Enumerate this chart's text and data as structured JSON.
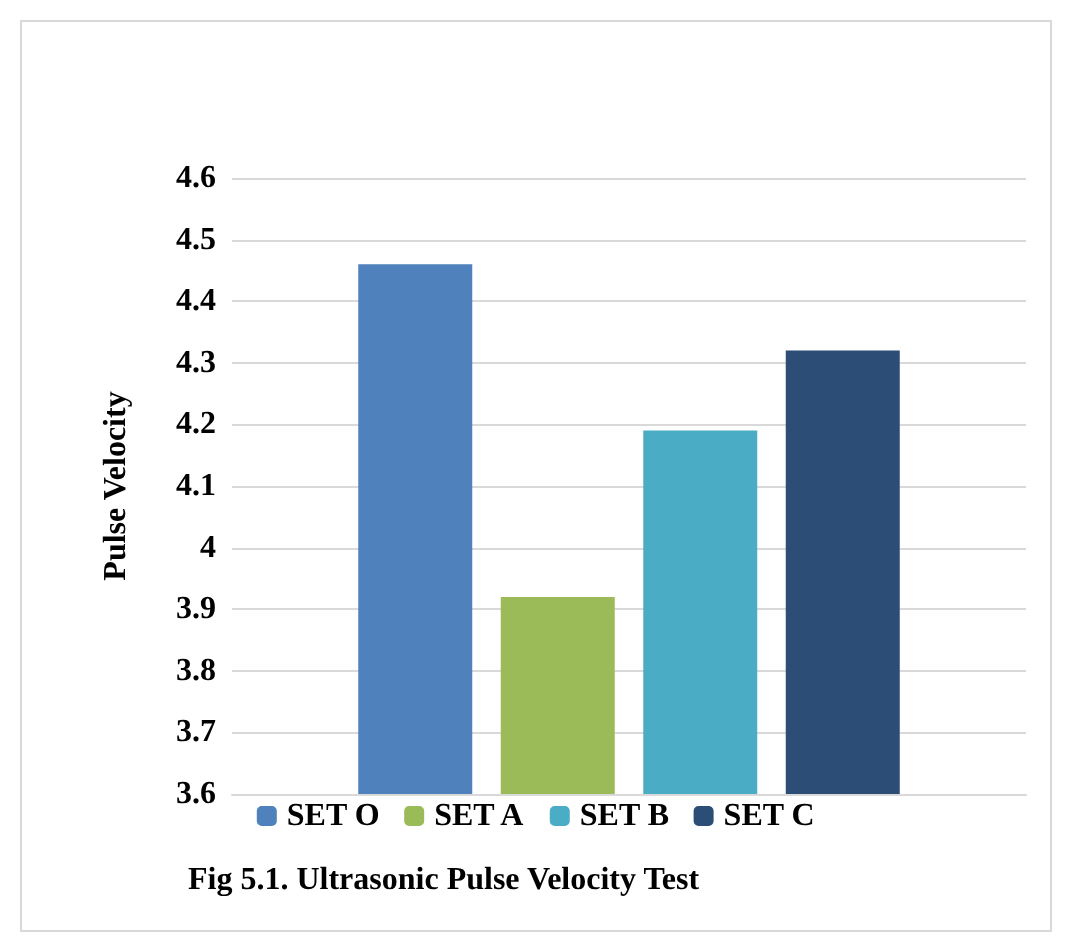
{
  "chart_data": {
    "type": "bar",
    "title": "Fig 5.1. Ultrasonic Pulse Velocity Test",
    "ylabel": "Pulse Velocity",
    "categories": [
      null
    ],
    "series": [
      {
        "name": "SET O",
        "color": "#4f81bd",
        "values": [
          4.46
        ]
      },
      {
        "name": "SET A",
        "color": "#9bbb59",
        "values": [
          3.92
        ]
      },
      {
        "name": "SET B",
        "color": "#4bacc6",
        "values": [
          4.19
        ]
      },
      {
        "name": "SET C",
        "color": "#2c4d75",
        "values": [
          4.32
        ]
      }
    ],
    "ylim": [
      3.6,
      4.6
    ],
    "yticks": [
      3.6,
      3.7,
      3.8,
      3.9,
      4,
      4.1,
      4.2,
      4.3,
      4.4,
      4.5,
      4.6
    ],
    "grid": "y",
    "legend": "bottom"
  }
}
